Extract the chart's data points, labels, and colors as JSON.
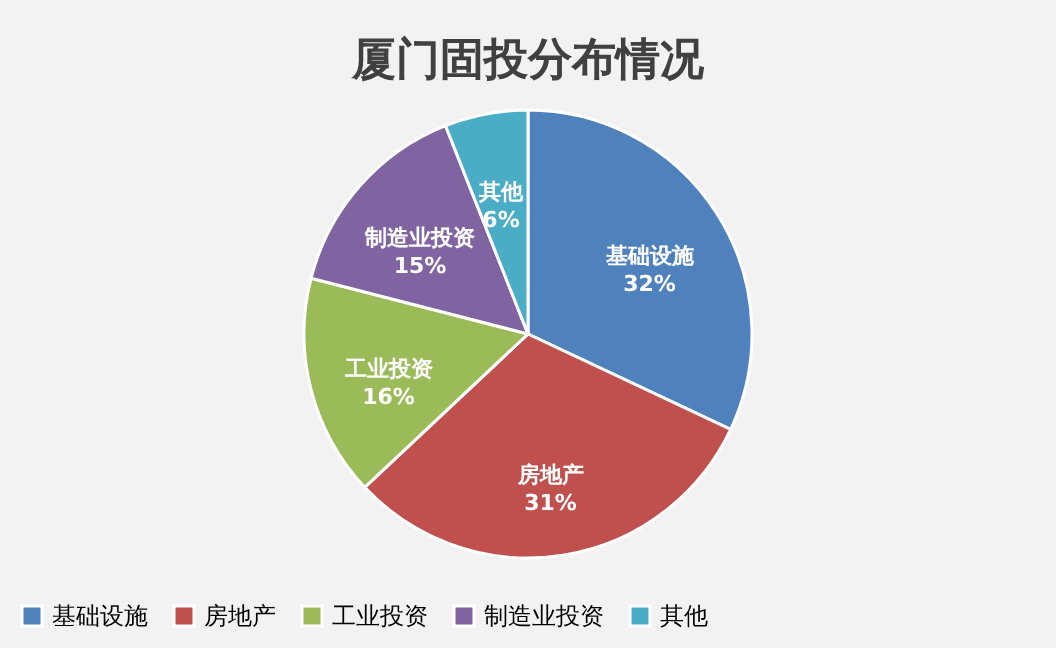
{
  "chart_data": {
    "type": "pie",
    "title": "厦门固投分布情况",
    "categories": [
      "基础设施",
      "房地产",
      "工业投资",
      "制造业投资",
      "其他"
    ],
    "values": [
      32,
      31,
      16,
      15,
      6
    ],
    "colors": [
      "#4f81bd",
      "#c0504d",
      "#9bbb59",
      "#8064a2",
      "#4bacc6"
    ],
    "value_labels": [
      "32%",
      "31%",
      "16%",
      "15%",
      "6%"
    ],
    "legend": "bottom"
  }
}
